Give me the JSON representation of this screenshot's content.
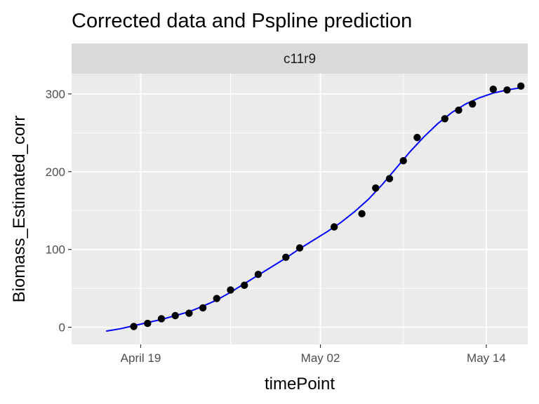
{
  "chart_data": {
    "type": "scatter",
    "title": "Corrected data and Pspline prediction",
    "facet_label": "c11r9",
    "xlabel": "timePoint",
    "ylabel": "Biomass_Estimated_corr",
    "x_ticks": [
      {
        "value": "2024-04-19",
        "label": "April 19"
      },
      {
        "value": "2024-05-02",
        "label": "May 02"
      },
      {
        "value": "2024-05-14",
        "label": "May 14"
      }
    ],
    "y_ticks": [
      0,
      100,
      200,
      300
    ],
    "xlim": [
      "2024-04-14",
      "2024-05-17"
    ],
    "ylim": [
      -22,
      326
    ],
    "grid": true,
    "series": [
      {
        "type": "scatter",
        "color": "#000000",
        "points": [
          {
            "x": "2024-04-18 12:00",
            "y": 1
          },
          {
            "x": "2024-04-19 12:00",
            "y": 5
          },
          {
            "x": "2024-04-20 12:00",
            "y": 11
          },
          {
            "x": "2024-04-21 12:00",
            "y": 15
          },
          {
            "x": "2024-04-22 12:00",
            "y": 18
          },
          {
            "x": "2024-04-23 12:00",
            "y": 25
          },
          {
            "x": "2024-04-24 12:00",
            "y": 37
          },
          {
            "x": "2024-04-25 12:00",
            "y": 48
          },
          {
            "x": "2024-04-26 12:00",
            "y": 54
          },
          {
            "x": "2024-04-27 12:00",
            "y": 68
          },
          {
            "x": "2024-04-29 12:00",
            "y": 90
          },
          {
            "x": "2024-04-30 12:00",
            "y": 102
          },
          {
            "x": "2024-05-03 00:00",
            "y": 129
          },
          {
            "x": "2024-05-05 00:00",
            "y": 146
          },
          {
            "x": "2024-05-06 00:00",
            "y": 179
          },
          {
            "x": "2024-05-07 00:00",
            "y": 191
          },
          {
            "x": "2024-05-08 00:00",
            "y": 214
          },
          {
            "x": "2024-05-09 00:00",
            "y": 244
          },
          {
            "x": "2024-05-11 00:00",
            "y": 268
          },
          {
            "x": "2024-05-12 00:00",
            "y": 279
          },
          {
            "x": "2024-05-13 00:00",
            "y": 287
          },
          {
            "x": "2024-05-14 12:00",
            "y": 306
          },
          {
            "x": "2024-05-15 12:00",
            "y": 305
          },
          {
            "x": "2024-05-16 12:00",
            "y": 310
          }
        ]
      },
      {
        "type": "line",
        "color": "#0000ff",
        "points": [
          {
            "x": "2024-04-16 12:00",
            "y": -5
          },
          {
            "x": "2024-04-17 12:00",
            "y": -2
          },
          {
            "x": "2024-04-18 12:00",
            "y": 2
          },
          {
            "x": "2024-04-19 12:00",
            "y": 6
          },
          {
            "x": "2024-04-20 12:00",
            "y": 10
          },
          {
            "x": "2024-04-21 12:00",
            "y": 15
          },
          {
            "x": "2024-04-22 12:00",
            "y": 20
          },
          {
            "x": "2024-04-23 12:00",
            "y": 27
          },
          {
            "x": "2024-04-24 12:00",
            "y": 35
          },
          {
            "x": "2024-04-25 12:00",
            "y": 45
          },
          {
            "x": "2024-04-26 12:00",
            "y": 56
          },
          {
            "x": "2024-04-27 12:00",
            "y": 67
          },
          {
            "x": "2024-04-28 12:00",
            "y": 78
          },
          {
            "x": "2024-04-29 12:00",
            "y": 89
          },
          {
            "x": "2024-04-30 12:00",
            "y": 101
          },
          {
            "x": "2024-05-01 12:00",
            "y": 112
          },
          {
            "x": "2024-05-02 12:00",
            "y": 123
          },
          {
            "x": "2024-05-03 12:00",
            "y": 135
          },
          {
            "x": "2024-05-04 12:00",
            "y": 149
          },
          {
            "x": "2024-05-05 12:00",
            "y": 165
          },
          {
            "x": "2024-05-06 12:00",
            "y": 184
          },
          {
            "x": "2024-05-07 12:00",
            "y": 205
          },
          {
            "x": "2024-05-08 12:00",
            "y": 226
          },
          {
            "x": "2024-05-09 12:00",
            "y": 245
          },
          {
            "x": "2024-05-10 12:00",
            "y": 262
          },
          {
            "x": "2024-05-11 12:00",
            "y": 276
          },
          {
            "x": "2024-05-12 12:00",
            "y": 287
          },
          {
            "x": "2024-05-13 12:00",
            "y": 295
          },
          {
            "x": "2024-05-14 12:00",
            "y": 301
          },
          {
            "x": "2024-05-15 12:00",
            "y": 305
          },
          {
            "x": "2024-05-16 12:00",
            "y": 308
          }
        ]
      }
    ]
  }
}
